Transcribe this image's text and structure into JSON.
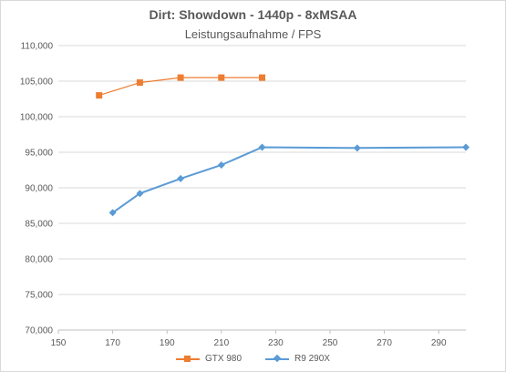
{
  "chart_data": {
    "type": "line",
    "title": "Dirt: Showdown - 1440p - 8xMSAA",
    "subtitle": "Leistungsaufnahme / FPS",
    "xlabel": "",
    "ylabel": "",
    "xlim": [
      150,
      300
    ],
    "ylim": [
      70,
      110
    ],
    "x_ticks": [
      150,
      170,
      190,
      210,
      230,
      250,
      270,
      290
    ],
    "y_ticks": [
      70,
      75,
      80,
      85,
      90,
      95,
      100,
      105,
      110
    ],
    "y_tick_labels": [
      "70,000",
      "75,000",
      "80,000",
      "85,000",
      "90,000",
      "95,000",
      "100,000",
      "105,000",
      "110,000"
    ],
    "grid": "horizontal",
    "legend_position": "bottom",
    "series": [
      {
        "name": "GTX 980",
        "color": "#ed7d31",
        "marker": "square",
        "x": [
          165,
          180,
          195,
          210,
          225
        ],
        "y": [
          103.0,
          104.8,
          105.5,
          105.5,
          105.5
        ]
      },
      {
        "name": "R9 290X",
        "color": "#5b9bd5",
        "marker": "diamond",
        "x": [
          170,
          180,
          195,
          210,
          225,
          260,
          300
        ],
        "y": [
          86.5,
          89.2,
          91.3,
          93.2,
          95.7,
          95.6,
          95.7
        ]
      }
    ]
  }
}
